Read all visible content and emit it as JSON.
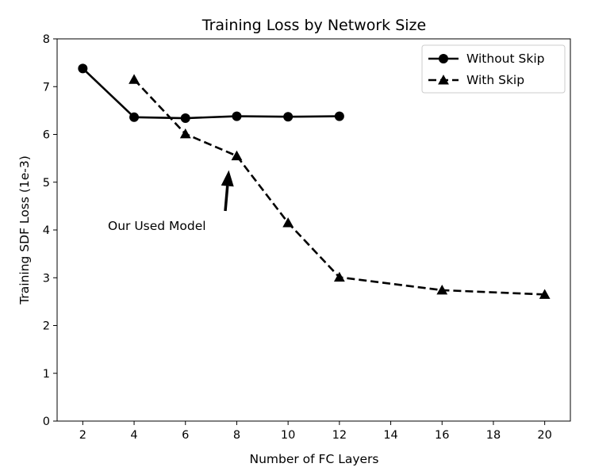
{
  "chart_data": {
    "type": "line",
    "title": "Training Loss by Network Size",
    "xlabel": "Number of FC Layers",
    "ylabel": "Training SDF Loss (1e-3)",
    "xlim": [
      1,
      21
    ],
    "ylim": [
      0,
      8
    ],
    "xticks": [
      2,
      4,
      6,
      8,
      10,
      12,
      14,
      16,
      18,
      20
    ],
    "yticks": [
      0,
      1,
      2,
      3,
      4,
      5,
      6,
      7,
      8
    ],
    "grid": false,
    "legend_position": "top-right",
    "series": [
      {
        "name": "Without Skip",
        "style": "solid",
        "marker": "circle",
        "color": "#000000",
        "x": [
          2,
          4,
          6,
          8,
          10,
          12
        ],
        "y": [
          7.38,
          6.36,
          6.34,
          6.38,
          6.37,
          6.38
        ]
      },
      {
        "name": "With Skip",
        "style": "dashed",
        "marker": "triangle",
        "color": "#000000",
        "x": [
          4,
          6,
          8,
          10,
          12,
          16,
          20
        ],
        "y": [
          7.15,
          6.01,
          5.55,
          4.15,
          3.01,
          2.74,
          2.65
        ]
      }
    ],
    "annotations": [
      {
        "text": "Our Used Model",
        "points_to": {
          "x": 8,
          "y": 5.55
        }
      }
    ]
  }
}
